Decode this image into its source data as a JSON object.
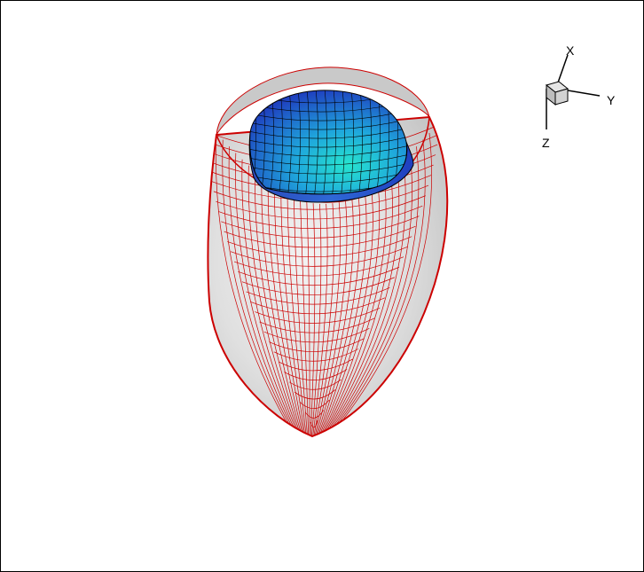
{
  "colors": {
    "outer_surface": "#dcdcdc",
    "outer_mesh": "#cc0000",
    "inner_surface_light": "#27e5cf",
    "inner_surface_dark": "#1f3fbf",
    "inner_mesh": "#000000",
    "background": "#ffffff"
  },
  "triad": {
    "x_label": "X",
    "y_label": "Y",
    "z_label": "Z"
  }
}
